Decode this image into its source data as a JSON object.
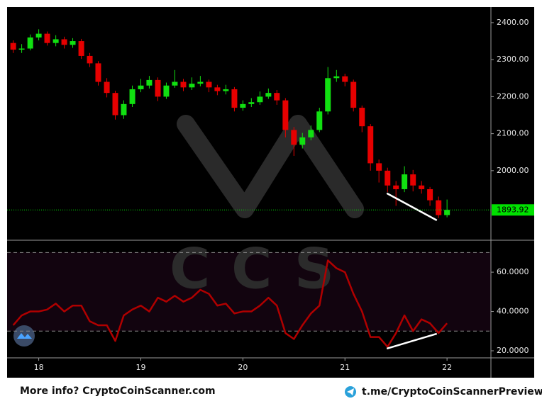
{
  "chart_data": [
    {
      "type": "candlestick",
      "up_color": "#11e011",
      "down_color": "#e60000",
      "x": [
        17.75,
        17.833,
        17.917,
        18,
        18.083,
        18.167,
        18.25,
        18.333,
        18.417,
        18.5,
        18.583,
        18.667,
        18.75,
        18.833,
        18.917,
        19,
        19.083,
        19.167,
        19.25,
        19.333,
        19.417,
        19.5,
        19.583,
        19.667,
        19.75,
        19.833,
        19.917,
        20,
        20.083,
        20.167,
        20.25,
        20.333,
        20.417,
        20.5,
        20.583,
        20.667,
        20.75,
        20.833,
        20.917,
        21,
        21.083,
        21.167,
        21.25,
        21.333,
        21.417,
        21.5,
        21.583,
        21.667,
        21.75,
        21.833,
        21.917,
        22
      ],
      "open": [
        2345,
        2327,
        2330,
        2360,
        2370,
        2345,
        2355,
        2340,
        2350,
        2310,
        2290,
        2240,
        2210,
        2150,
        2180,
        2220,
        2230,
        2245,
        2200,
        2230,
        2240,
        2225,
        2235,
        2240,
        2225,
        2215,
        2220,
        2170,
        2180,
        2185,
        2200,
        2210,
        2190,
        2110,
        2070,
        2090,
        2110,
        2160,
        2250,
        2255,
        2240,
        2170,
        2120,
        2020,
        2000,
        1960,
        1950,
        1990,
        1960,
        1950,
        1920,
        1880
      ],
      "high": [
        2352,
        2342,
        2368,
        2382,
        2376,
        2366,
        2362,
        2358,
        2356,
        2318,
        2296,
        2250,
        2216,
        2190,
        2230,
        2248,
        2256,
        2252,
        2238,
        2272,
        2248,
        2252,
        2256,
        2246,
        2232,
        2232,
        2226,
        2190,
        2196,
        2214,
        2222,
        2218,
        2196,
        2118,
        2102,
        2122,
        2170,
        2280,
        2272,
        2262,
        2246,
        2176,
        2126,
        2030,
        2008,
        1972,
        2012,
        2002,
        1972,
        1956,
        1930,
        1922
      ],
      "low": [
        2318,
        2318,
        2325,
        2352,
        2338,
        2336,
        2330,
        2332,
        2302,
        2280,
        2230,
        2198,
        2138,
        2140,
        2172,
        2212,
        2222,
        2188,
        2194,
        2224,
        2215,
        2218,
        2228,
        2212,
        2204,
        2206,
        2160,
        2162,
        2172,
        2178,
        2194,
        2178,
        2090,
        2040,
        2060,
        2082,
        2104,
        2152,
        2240,
        2228,
        2160,
        2104,
        2000,
        1968,
        1942,
        1905,
        1942,
        1944,
        1938,
        1905,
        1872,
        1874
      ],
      "close": [
        2327,
        2330,
        2360,
        2370,
        2345,
        2355,
        2340,
        2350,
        2310,
        2290,
        2240,
        2210,
        2150,
        2180,
        2220,
        2230,
        2245,
        2200,
        2230,
        2240,
        2225,
        2235,
        2240,
        2225,
        2215,
        2220,
        2170,
        2180,
        2185,
        2200,
        2210,
        2190,
        2110,
        2070,
        2090,
        2110,
        2160,
        2250,
        2255,
        2240,
        2170,
        2120,
        2020,
        2000,
        1960,
        1950,
        1990,
        1960,
        1950,
        1920,
        1880,
        1894
      ],
      "last_price": 1893.92,
      "last_price_color": "#00e000",
      "trendline": {
        "x": [
          21.41,
          21.9
        ],
        "y": [
          1939,
          1866
        ],
        "color": "#ffffff"
      },
      "watermark": "CCS",
      "xlim": [
        17.69,
        22.43
      ],
      "ylim": [
        1814,
        2442
      ],
      "yticks": [
        {
          "value": 2000,
          "label": "2000.00"
        },
        {
          "value": 2100,
          "label": "2100.00"
        },
        {
          "value": 2200,
          "label": "2200.00"
        },
        {
          "value": 2300,
          "label": "2300.00"
        },
        {
          "value": 2400,
          "label": "2400.00"
        }
      ]
    },
    {
      "type": "line",
      "color": "#b00000",
      "x": [
        17.75,
        17.833,
        17.917,
        18,
        18.083,
        18.167,
        18.25,
        18.333,
        18.417,
        18.5,
        18.583,
        18.667,
        18.75,
        18.833,
        18.917,
        19,
        19.083,
        19.167,
        19.25,
        19.333,
        19.417,
        19.5,
        19.583,
        19.667,
        19.75,
        19.833,
        19.917,
        20,
        20.083,
        20.167,
        20.25,
        20.333,
        20.417,
        20.5,
        20.583,
        20.667,
        20.75,
        20.833,
        20.917,
        21,
        21.083,
        21.167,
        21.25,
        21.333,
        21.417,
        21.5,
        21.583,
        21.667,
        21.75,
        21.833,
        21.917,
        22
      ],
      "values": [
        33,
        38,
        40,
        40,
        41,
        44,
        40,
        43,
        43,
        35,
        33,
        33,
        25,
        38,
        41,
        43,
        40,
        47,
        45,
        48,
        45,
        47,
        51,
        49,
        43,
        44,
        39,
        40,
        40,
        43,
        47,
        43,
        29,
        26,
        33,
        39,
        43,
        66,
        62,
        60,
        49,
        40,
        27,
        27,
        22,
        29,
        38,
        30,
        36,
        34,
        29,
        34
      ],
      "levels": [
        30,
        70
      ],
      "trendline": {
        "x": [
          21.41,
          21.9
        ],
        "y": [
          21.1,
          28.7
        ],
        "color": "#ffffff"
      },
      "xlim": [
        17.69,
        22.43
      ],
      "ylim": [
        16.4,
        75.9
      ],
      "yticks": [
        {
          "value": 20,
          "label": "20.0000"
        },
        {
          "value": 40,
          "label": "40.0000"
        },
        {
          "value": 60,
          "label": "60.0000"
        }
      ],
      "xticks": [
        18,
        19,
        20,
        21,
        22
      ]
    }
  ],
  "footer": {
    "left": "More info? CryptoCoinScanner.com",
    "right": "t.me/CryptoCoinScannerPreview"
  }
}
